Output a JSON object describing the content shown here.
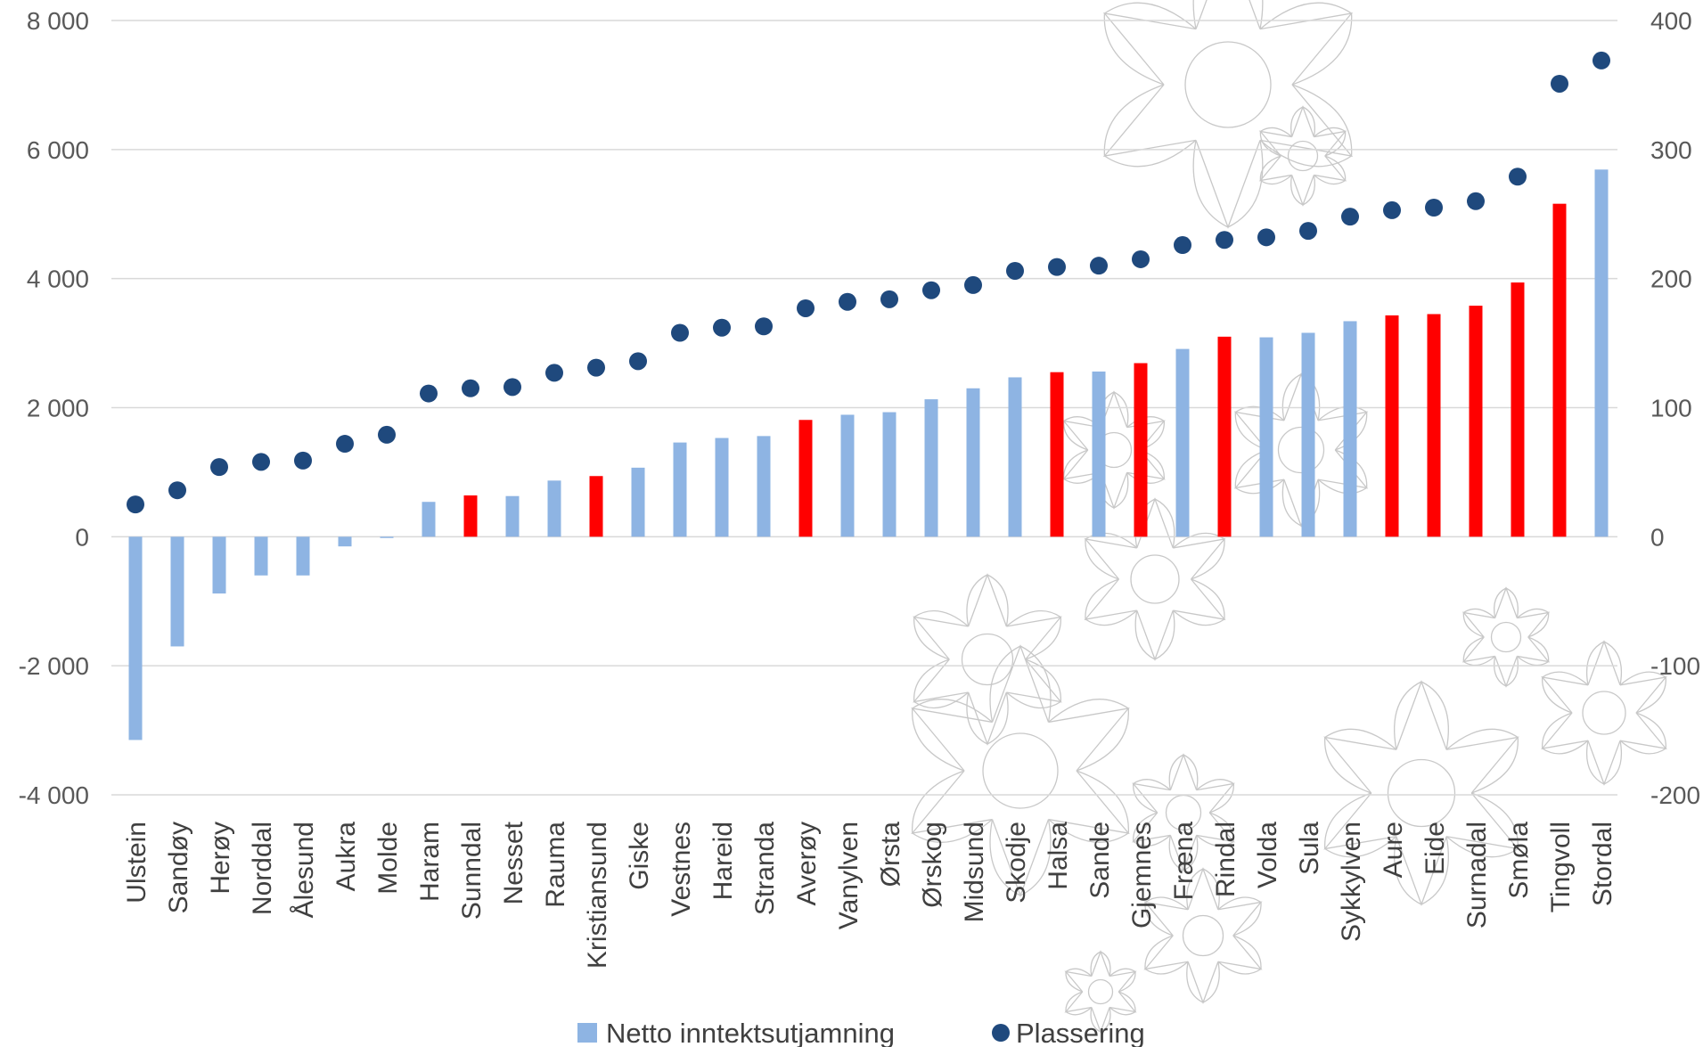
{
  "chart_data": {
    "type": "bar",
    "categories": [
      "Ulstein",
      "Sandøy",
      "Herøy",
      "Norddal",
      "Ålesund",
      "Aukra",
      "Molde",
      "Haram",
      "Sunndal",
      "Nesset",
      "Rauma",
      "Kristiansund",
      "Giske",
      "Vestnes",
      "Hareid",
      "Stranda",
      "Averøy",
      "Vanylven",
      "Ørsta",
      "Ørskog",
      "Midsund",
      "Skodje",
      "Halsa",
      "Sande",
      "Gjemnes",
      "Fræna",
      "Rindal",
      "Volda",
      "Sula",
      "Sykkylven",
      "Aure",
      "Eide",
      "Surnadal",
      "Smøla",
      "Tingvoll",
      "Stordal"
    ],
    "series": [
      {
        "name": "Netto inntektsutjamning",
        "type": "bar",
        "axis": "left",
        "color": "#8eb4e3",
        "highlight_color": "#ff0000",
        "highlighted": [
          "Sunndal",
          "Kristiansund",
          "Averøy",
          "Halsa",
          "Gjemnes",
          "Rindal",
          "Aure",
          "Eide",
          "Surnadal",
          "Smøla",
          "Tingvoll"
        ],
        "values": [
          -3150,
          -1700,
          -880,
          -600,
          -600,
          -150,
          -20,
          540,
          640,
          630,
          870,
          940,
          1070,
          1460,
          1530,
          1560,
          1810,
          1890,
          1930,
          2130,
          2300,
          2470,
          2550,
          2560,
          2690,
          2910,
          3100,
          3090,
          3160,
          3340,
          3430,
          3450,
          3580,
          3940,
          5160,
          5690
        ]
      },
      {
        "name": "Plassering",
        "type": "scatter",
        "axis": "right",
        "color": "#1f497d",
        "values": [
          25,
          36,
          54,
          58,
          59,
          72,
          79,
          111,
          115,
          116,
          127,
          131,
          136,
          158,
          162,
          163,
          177,
          182,
          184,
          191,
          195,
          206,
          209,
          210,
          215,
          226,
          230,
          232,
          237,
          248,
          253,
          255,
          260,
          279,
          351,
          369
        ]
      }
    ],
    "y_left": {
      "min": -4000,
      "max": 8000,
      "ticks": [
        "-4 000",
        "-2 000",
        "0",
        "2 000",
        "4 000",
        "6 000",
        "8 000"
      ]
    },
    "y_right": {
      "min": -200,
      "max": 400,
      "ticks": [
        "-200",
        "-100",
        "0",
        "100",
        "200",
        "300",
        "400"
      ]
    },
    "grid": true,
    "legend": {
      "position": "bottom",
      "items": [
        "Netto inntektsutjamning",
        "Plassering"
      ]
    }
  },
  "colors": {
    "bar": "#8eb4e3",
    "bar_highlight": "#ff0000",
    "marker": "#1f497d",
    "grid": "#d9d9d9",
    "watermark": "#c8c8c8"
  }
}
